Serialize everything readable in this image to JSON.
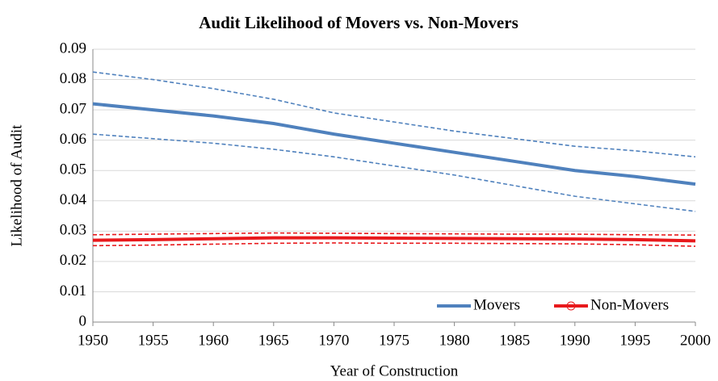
{
  "chart_data": {
    "type": "line",
    "title": "Audit Likelihood of Movers vs. Non-Movers",
    "x_label": "Year of Construction",
    "y_label": "Likelihood of Audit",
    "x": [
      1950,
      1955,
      1960,
      1965,
      1970,
      1975,
      1980,
      1985,
      1990,
      1995,
      2000
    ],
    "series": [
      {
        "name": "Movers",
        "color": "#4f81bd",
        "values": [
          0.072,
          0.07,
          0.068,
          0.0655,
          0.062,
          0.059,
          0.056,
          0.053,
          0.05,
          0.048,
          0.0455
        ],
        "upper": [
          0.0825,
          0.08,
          0.077,
          0.0735,
          0.069,
          0.066,
          0.063,
          0.0605,
          0.058,
          0.0565,
          0.0545
        ],
        "lower": [
          0.062,
          0.0605,
          0.059,
          0.057,
          0.0545,
          0.0515,
          0.0485,
          0.045,
          0.0415,
          0.039,
          0.0365
        ]
      },
      {
        "name": "Non-Movers",
        "color": "#e8191c",
        "marker": "circle",
        "values": [
          0.027,
          0.0272,
          0.0275,
          0.0278,
          0.0278,
          0.0277,
          0.0276,
          0.0275,
          0.0274,
          0.0272,
          0.0268
        ],
        "upper": [
          0.0288,
          0.029,
          0.0292,
          0.0294,
          0.0293,
          0.0292,
          0.0291,
          0.029,
          0.029,
          0.0288,
          0.0287
        ],
        "lower": [
          0.0252,
          0.0254,
          0.0257,
          0.026,
          0.0261,
          0.026,
          0.026,
          0.0259,
          0.0258,
          0.0255,
          0.025
        ]
      }
    ],
    "xlim": [
      1950,
      2000
    ],
    "xticks": [
      1950,
      1955,
      1960,
      1965,
      1970,
      1975,
      1980,
      1985,
      1990,
      1995,
      2000
    ],
    "ylim": [
      0,
      0.09
    ],
    "yticks": [
      0,
      0.01,
      0.02,
      0.03,
      0.04,
      0.05,
      0.06,
      0.07,
      0.08,
      0.09
    ],
    "grid": true,
    "legend": "lower right"
  }
}
